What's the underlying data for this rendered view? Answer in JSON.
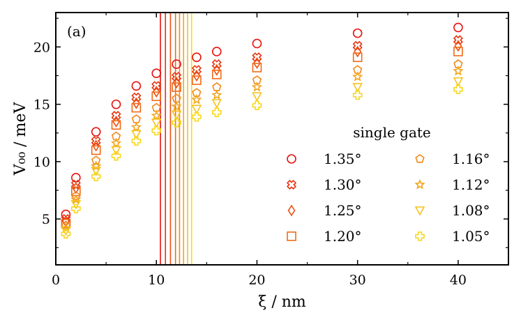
{
  "chart_data": {
    "type": "scatter",
    "panel_label": "(a)",
    "xlabel": "ξ / nm",
    "ylabel": "V₀₀ / meV",
    "xlim": [
      0,
      45
    ],
    "ylim": [
      1,
      23
    ],
    "xticks": [
      0,
      10,
      20,
      30,
      40
    ],
    "yticks": [
      5,
      10,
      15,
      20
    ],
    "legend_title": "single gate",
    "legend_position": "right",
    "x": [
      1,
      2,
      4,
      6,
      8,
      10,
      12,
      14,
      16,
      20,
      30,
      40
    ],
    "series": [
      {
        "name": "1.35°",
        "marker": "circle",
        "color": "#e8110f",
        "values": [
          5.4,
          8.6,
          12.6,
          15.0,
          16.6,
          17.7,
          18.5,
          19.1,
          19.6,
          20.3,
          21.2,
          21.7
        ]
      },
      {
        "name": "1.30°",
        "marker": "x-cross",
        "color": "#e8330f",
        "values": [
          5.0,
          8.0,
          11.8,
          14.0,
          15.6,
          16.6,
          17.4,
          18.0,
          18.5,
          19.1,
          20.1,
          20.6
        ]
      },
      {
        "name": "1.25°",
        "marker": "diamond",
        "color": "#ec4f10",
        "values": [
          4.8,
          7.7,
          11.4,
          13.5,
          15.1,
          16.1,
          16.9,
          17.5,
          18.0,
          18.6,
          19.6,
          20.1
        ]
      },
      {
        "name": "1.20°",
        "marker": "square",
        "color": "#f06a18",
        "values": [
          4.6,
          7.4,
          11.0,
          13.2,
          14.7,
          15.7,
          16.5,
          17.1,
          17.6,
          18.2,
          19.1,
          19.6
        ]
      },
      {
        "name": "1.16°",
        "marker": "pentagon",
        "color": "#f2881a",
        "values": [
          4.4,
          7.0,
          10.1,
          12.2,
          13.7,
          14.7,
          15.5,
          16.0,
          16.5,
          17.1,
          18.0,
          18.5
        ]
      },
      {
        "name": "1.12°",
        "marker": "star",
        "color": "#f4a41c",
        "values": [
          4.2,
          6.7,
          9.6,
          11.6,
          13.0,
          14.0,
          14.8,
          15.4,
          15.8,
          16.5,
          17.4,
          17.9
        ]
      },
      {
        "name": "1.08°",
        "marker": "triangle-down",
        "color": "#f6c21c",
        "values": [
          4.0,
          6.3,
          9.2,
          11.0,
          12.4,
          13.4,
          14.1,
          14.6,
          15.1,
          15.7,
          16.5,
          17.0
        ]
      },
      {
        "name": "1.05°",
        "marker": "plus",
        "color": "#f8d81c",
        "values": [
          3.7,
          5.9,
          8.7,
          10.5,
          11.8,
          12.7,
          13.4,
          13.9,
          14.3,
          14.9,
          15.8,
          16.3
        ]
      }
    ],
    "vertical_lines": [
      {
        "x": 10.4,
        "color": "#e8110f"
      },
      {
        "x": 10.9,
        "color": "#e8330f"
      },
      {
        "x": 11.4,
        "color": "#ec4f10"
      },
      {
        "x": 11.9,
        "color": "#f06a18"
      },
      {
        "x": 12.3,
        "color": "#f2881a"
      },
      {
        "x": 12.7,
        "color": "#f4a41c"
      },
      {
        "x": 13.1,
        "color": "#f6c21c"
      },
      {
        "x": 13.5,
        "color": "#f8d81c"
      }
    ]
  }
}
